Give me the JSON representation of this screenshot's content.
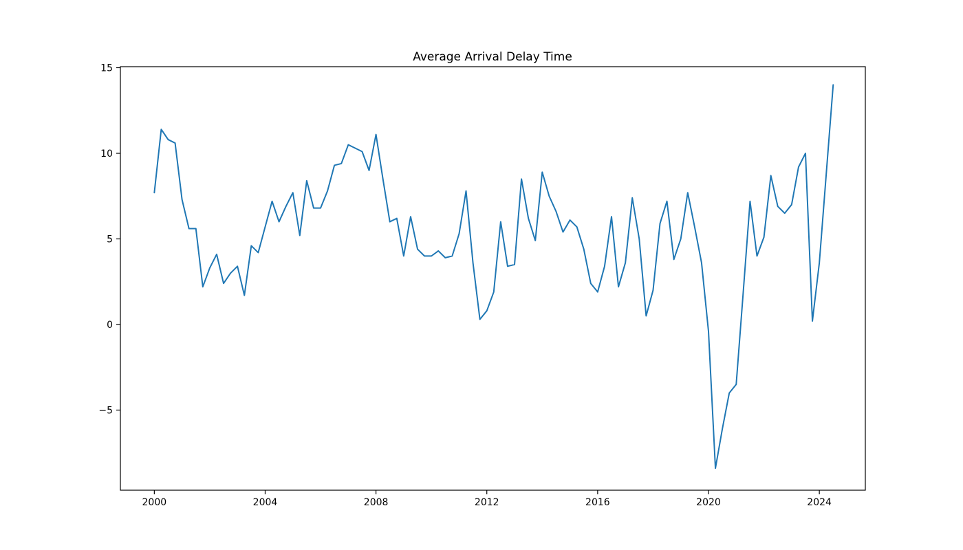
{
  "figure": {
    "background": "#ffffff"
  },
  "chart_data": {
    "type": "line",
    "title": "Average Arrival Delay Time",
    "xlabel": "",
    "ylabel": "",
    "series_name": "average_arrival_delay",
    "line_color": "#1f77b4",
    "xlim": [
      1998.775,
      2025.66
    ],
    "ylim": [
      -9.68,
      15.06
    ],
    "xticks": [
      2000,
      2004,
      2008,
      2012,
      2016,
      2020,
      2024
    ],
    "xtick_labels": [
      "2000",
      "2004",
      "2008",
      "2012",
      "2016",
      "2020",
      "2024"
    ],
    "yticks": [
      15,
      10,
      5,
      0,
      -5
    ],
    "ytick_labels": [
      "15",
      "10",
      "5",
      "0",
      "−5"
    ],
    "grid": false,
    "legend": "none",
    "x": [
      2000.0,
      2000.25,
      2000.5,
      2000.75,
      2001.0,
      2001.25,
      2001.5,
      2001.75,
      2002.0,
      2002.25,
      2002.5,
      2002.75,
      2003.0,
      2003.25,
      2003.5,
      2003.75,
      2004.0,
      2004.25,
      2004.5,
      2004.75,
      2005.0,
      2005.25,
      2005.5,
      2005.75,
      2006.0,
      2006.25,
      2006.5,
      2006.75,
      2007.0,
      2007.25,
      2007.5,
      2007.75,
      2008.0,
      2008.25,
      2008.5,
      2008.75,
      2009.0,
      2009.25,
      2009.5,
      2009.75,
      2010.0,
      2010.25,
      2010.5,
      2010.75,
      2011.0,
      2011.25,
      2011.5,
      2011.75,
      2012.0,
      2012.25,
      2012.5,
      2012.75,
      2013.0,
      2013.25,
      2013.5,
      2013.75,
      2014.0,
      2014.25,
      2014.5,
      2014.75,
      2015.0,
      2015.25,
      2015.5,
      2015.75,
      2016.0,
      2016.25,
      2016.5,
      2016.75,
      2017.0,
      2017.25,
      2017.5,
      2017.75,
      2018.0,
      2018.25,
      2018.5,
      2018.75,
      2019.0,
      2019.25,
      2019.5,
      2019.75,
      2020.0,
      2020.25,
      2020.5,
      2020.75,
      2021.0,
      2021.25,
      2021.5,
      2021.75,
      2022.0,
      2022.25,
      2022.5,
      2022.75,
      2023.0,
      2023.25,
      2023.5,
      2023.75,
      2024.0,
      2024.25,
      2024.5
    ],
    "values": [
      7.7,
      11.4,
      10.8,
      10.6,
      7.3,
      5.6,
      5.6,
      2.2,
      3.3,
      4.1,
      2.4,
      3.0,
      3.4,
      1.7,
      4.6,
      4.2,
      5.7,
      7.2,
      6.0,
      6.9,
      7.7,
      5.2,
      8.4,
      6.8,
      6.8,
      7.8,
      9.3,
      9.4,
      10.5,
      10.3,
      10.1,
      9.0,
      11.1,
      8.5,
      6.0,
      6.2,
      4.0,
      6.3,
      4.4,
      4.0,
      4.0,
      4.3,
      3.9,
      4.0,
      5.3,
      7.8,
      3.6,
      0.3,
      0.8,
      1.9,
      6.0,
      3.4,
      3.5,
      8.5,
      6.2,
      4.9,
      8.9,
      7.5,
      6.6,
      5.4,
      6.1,
      5.7,
      4.4,
      2.4,
      1.9,
      3.4,
      6.3,
      2.2,
      3.6,
      7.4,
      5.0,
      0.5,
      2.0,
      5.9,
      7.2,
      3.8,
      5.0,
      7.7,
      5.7,
      3.6,
      -0.4,
      -8.4,
      -6.1,
      -4.0,
      -3.5,
      1.8,
      7.2,
      4.0,
      5.1,
      8.7,
      6.9,
      6.5,
      7.0,
      9.2,
      10.0,
      0.2,
      3.6,
      8.8,
      14.0
    ]
  }
}
